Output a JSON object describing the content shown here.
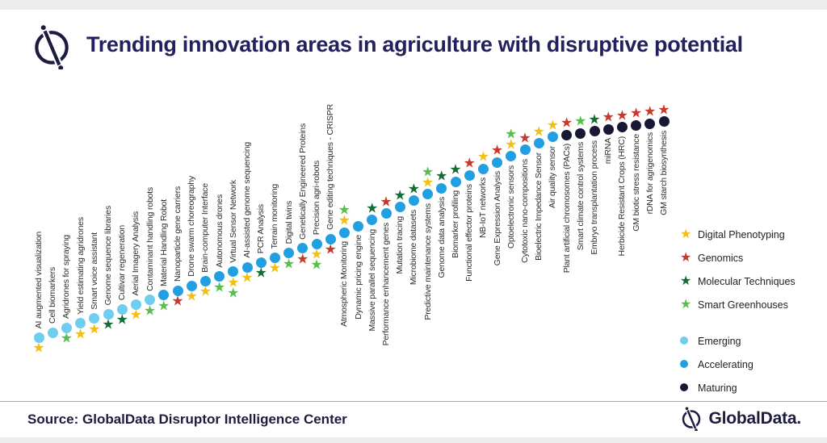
{
  "header": {
    "title": "Trending innovation areas in agriculture with disruptive potential"
  },
  "footer": {
    "source": "Source: GlobalData Disruptor Intelligence Center",
    "brand": "GlobalData."
  },
  "colors": {
    "title_navy": "#23215c",
    "text_dark": "#2d2d2d",
    "brand_navy": "#1d1c3e"
  },
  "chart_data": {
    "type": "scatter",
    "title": "Trending innovation areas in agriculture with disruptive potential",
    "layout_hints": {
      "orientation": "ascending-diagonal",
      "labels_above_count": 22,
      "legend_position": "right",
      "grid": "off"
    },
    "categories_legend": [
      {
        "key": "digital-phenotyping",
        "label": "Digital Phenotyping",
        "color": "#f2c014"
      },
      {
        "key": "genomics",
        "label": "Genomics",
        "color": "#c8392c"
      },
      {
        "key": "molecular-techniques",
        "label": "Molecular Techniques",
        "color": "#156b33"
      },
      {
        "key": "smart-greenhouses",
        "label": "Smart Greenhouses",
        "color": "#5abe4e"
      }
    ],
    "phases_legend": [
      {
        "key": "emerging",
        "label": "Emerging",
        "color": "#6fcdef"
      },
      {
        "key": "accelerating",
        "label": "Accelerating",
        "color": "#219fe0"
      },
      {
        "key": "maturing",
        "label": "Maturing",
        "color": "#191834"
      }
    ],
    "items": [
      {
        "label": "AI augmented visualization",
        "phase": "emerging",
        "categories": [
          "digital-phenotyping"
        ]
      },
      {
        "label": "Cell biomarkers",
        "phase": "emerging",
        "categories": []
      },
      {
        "label": "Agridrones for spraying",
        "phase": "emerging",
        "categories": [
          "smart-greenhouses"
        ]
      },
      {
        "label": "Yield estimating agridrones",
        "phase": "emerging",
        "categories": [
          "digital-phenotyping"
        ]
      },
      {
        "label": "Smart voice assistant",
        "phase": "emerging",
        "categories": [
          "digital-phenotyping"
        ]
      },
      {
        "label": "Genome sequence libraries",
        "phase": "emerging",
        "categories": [
          "molecular-techniques"
        ]
      },
      {
        "label": "Cultivar regeneration",
        "phase": "emerging",
        "categories": [
          "molecular-techniques"
        ]
      },
      {
        "label": "Aerial Imagery Analysis",
        "phase": "emerging",
        "categories": [
          "digital-phenotyping"
        ]
      },
      {
        "label": "Contaminant handling robots",
        "phase": "emerging",
        "categories": [
          "smart-greenhouses"
        ]
      },
      {
        "label": "Material Handling Robot",
        "phase": "accelerating",
        "categories": [
          "smart-greenhouses"
        ]
      },
      {
        "label": "Nanoparticle gene carriers",
        "phase": "accelerating",
        "categories": [
          "genomics"
        ]
      },
      {
        "label": "Drone swarm choreography",
        "phase": "accelerating",
        "categories": [
          "digital-phenotyping"
        ]
      },
      {
        "label": "Brain-computer Interface",
        "phase": "accelerating",
        "categories": [
          "digital-phenotyping"
        ]
      },
      {
        "label": "Autonomous drones",
        "phase": "accelerating",
        "categories": [
          "smart-greenhouses"
        ]
      },
      {
        "label": "Virtual Sensor Network",
        "phase": "accelerating",
        "categories": [
          "digital-phenotyping",
          "smart-greenhouses"
        ]
      },
      {
        "label": "AI-assisted genome sequencing",
        "phase": "accelerating",
        "categories": [
          "digital-phenotyping"
        ]
      },
      {
        "label": "PCR Analysis",
        "phase": "accelerating",
        "categories": [
          "molecular-techniques"
        ]
      },
      {
        "label": "Terrain monitoring",
        "phase": "accelerating",
        "categories": [
          "digital-phenotyping"
        ]
      },
      {
        "label": "Digital twins",
        "phase": "accelerating",
        "categories": [
          "smart-greenhouses"
        ]
      },
      {
        "label": "Genetically Engineered Proteins",
        "phase": "accelerating",
        "categories": [
          "genomics"
        ]
      },
      {
        "label": "Precision agri-robots",
        "phase": "accelerating",
        "categories": [
          "digital-phenotyping",
          "smart-greenhouses"
        ]
      },
      {
        "label": "Gene editing techniques - CRISPR",
        "phase": "accelerating",
        "categories": [
          "genomics"
        ]
      },
      {
        "label": "Atmospheric Monitoring",
        "phase": "accelerating",
        "categories": [
          "digital-phenotyping",
          "smart-greenhouses"
        ]
      },
      {
        "label": "Dynamic pricing engine",
        "phase": "accelerating",
        "categories": []
      },
      {
        "label": "Massive parallel sequencing",
        "phase": "accelerating",
        "categories": [
          "molecular-techniques"
        ]
      },
      {
        "label": "Performance enhancement genes",
        "phase": "accelerating",
        "categories": [
          "genomics"
        ]
      },
      {
        "label": "Mutation tracing",
        "phase": "accelerating",
        "categories": [
          "molecular-techniques"
        ]
      },
      {
        "label": "Microbiome datasets",
        "phase": "accelerating",
        "categories": [
          "molecular-techniques"
        ]
      },
      {
        "label": "Predictive maintenance systems",
        "phase": "accelerating",
        "categories": [
          "digital-phenotyping",
          "smart-greenhouses"
        ]
      },
      {
        "label": "Genome data analysis",
        "phase": "accelerating",
        "categories": [
          "molecular-techniques"
        ]
      },
      {
        "label": "Biomarker profiling",
        "phase": "accelerating",
        "categories": [
          "molecular-techniques"
        ]
      },
      {
        "label": "Functional effector proteins",
        "phase": "accelerating",
        "categories": [
          "genomics"
        ]
      },
      {
        "label": "NB-IoT networks",
        "phase": "accelerating",
        "categories": [
          "digital-phenotyping"
        ]
      },
      {
        "label": "Gene Expression Analysis",
        "phase": "accelerating",
        "categories": [
          "genomics"
        ]
      },
      {
        "label": "Optoelectronic sensors",
        "phase": "accelerating",
        "categories": [
          "digital-phenotyping",
          "smart-greenhouses"
        ]
      },
      {
        "label": "Cytotoxic nano-compositions",
        "phase": "accelerating",
        "categories": [
          "genomics"
        ]
      },
      {
        "label": "Bioelectric Impedance Sensor",
        "phase": "accelerating",
        "categories": [
          "digital-phenotyping"
        ]
      },
      {
        "label": "Air quality sensor",
        "phase": "accelerating",
        "categories": [
          "digital-phenotyping"
        ]
      },
      {
        "label": "Plant artificial chromosomes (PACs)",
        "phase": "maturing",
        "categories": [
          "genomics"
        ]
      },
      {
        "label": "Smart climate control systems",
        "phase": "maturing",
        "categories": [
          "smart-greenhouses"
        ]
      },
      {
        "label": "Embryo transplantation process",
        "phase": "maturing",
        "categories": [
          "molecular-techniques"
        ]
      },
      {
        "label": "miRNA",
        "phase": "maturing",
        "categories": [
          "genomics"
        ]
      },
      {
        "label": "Herbicide Resistant Crops (HRC)",
        "phase": "maturing",
        "categories": [
          "genomics"
        ]
      },
      {
        "label": "GM biotic stress resistance",
        "phase": "maturing",
        "categories": [
          "genomics"
        ]
      },
      {
        "label": "rDNA for agrigenomics",
        "phase": "maturing",
        "categories": [
          "genomics"
        ]
      },
      {
        "label": "GM starch biosynthesis",
        "phase": "maturing",
        "categories": [
          "genomics"
        ]
      }
    ]
  }
}
